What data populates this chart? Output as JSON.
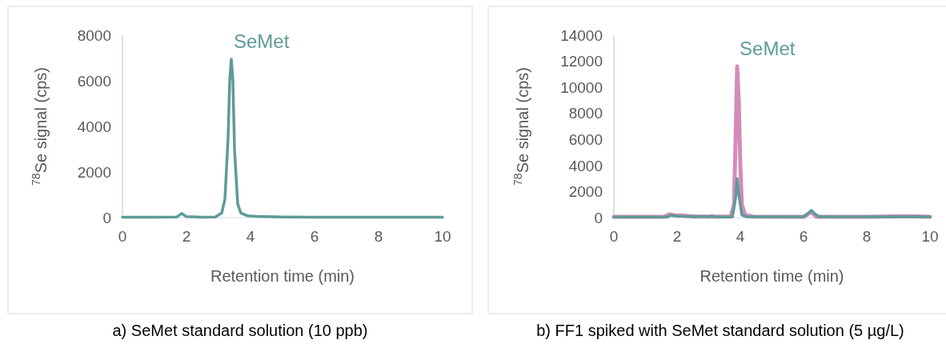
{
  "chart_data": [
    {
      "type": "line",
      "xlabel": "Retention time (min)",
      "ylabel": "$^{78}$Se signal (cps)",
      "xlim": [
        0,
        10
      ],
      "xticks": [
        0,
        2,
        4,
        6,
        8,
        10
      ],
      "ylim": [
        0,
        8000
      ],
      "yticks": [
        0,
        2000,
        4000,
        6000,
        8000
      ],
      "grid": false,
      "line_style": "solid",
      "annotations": [
        {
          "text": "SeMet",
          "x": 3.4,
          "y": 6950
        },
        "a)  SeMet standard solution (10 ppb)"
      ],
      "series": [
        {
          "color": "#5e9b98",
          "x": [
            0,
            1.0,
            1.7,
            1.85,
            2.0,
            2.5,
            2.9,
            3.1,
            3.2,
            3.3,
            3.35,
            3.4,
            3.45,
            3.5,
            3.6,
            3.7,
            3.9,
            4.2,
            5,
            6,
            8,
            10
          ],
          "values": [
            20,
            20,
            30,
            180,
            40,
            20,
            30,
            200,
            800,
            3500,
            6000,
            6950,
            6000,
            3000,
            600,
            200,
            80,
            50,
            30,
            20,
            20,
            20
          ]
        }
      ]
    },
    {
      "type": "line",
      "xlabel": "Retention time (min)",
      "ylabel": "$^{78}$Se signal (cps)",
      "xlim": [
        0,
        10
      ],
      "xticks": [
        0,
        2,
        4,
        6,
        8,
        10
      ],
      "ylim": [
        0,
        14000
      ],
      "yticks": [
        0,
        2000,
        4000,
        6000,
        8000,
        10000,
        12000,
        14000
      ],
      "grid": false,
      "line_style": "solid",
      "annotations": [
        {
          "text": "SeMet",
          "x": 3.9,
          "y": 11600
        },
        "b) FF1 spiked with SeMet standard solution (5 µg/L)"
      ],
      "series": [
        {
          "color": "#d48bba",
          "x": [
            0,
            1.6,
            1.75,
            1.9,
            2.2,
            2.6,
            3.7,
            3.8,
            3.85,
            3.9,
            3.95,
            4.0,
            4.05,
            4.15,
            4.4,
            6,
            6.1,
            6.25,
            6.4,
            8,
            9.3,
            10
          ],
          "values": [
            60,
            60,
            250,
            180,
            150,
            80,
            80,
            1000,
            6000,
            11600,
            9000,
            4000,
            1000,
            200,
            80,
            60,
            200,
            450,
            60,
            60,
            100,
            60
          ]
        },
        {
          "color": "#5e9b98",
          "x": [
            0,
            1.7,
            1.8,
            2.0,
            2.6,
            2.8,
            3.0,
            3.1,
            3.2,
            3.75,
            3.85,
            3.9,
            3.95,
            4.05,
            4.2,
            6.0,
            6.15,
            6.25,
            6.35,
            6.5,
            10
          ],
          "values": [
            50,
            50,
            180,
            100,
            60,
            100,
            60,
            120,
            50,
            50,
            1500,
            3000,
            1800,
            200,
            60,
            60,
            350,
            550,
            300,
            60,
            60
          ]
        }
      ]
    }
  ]
}
